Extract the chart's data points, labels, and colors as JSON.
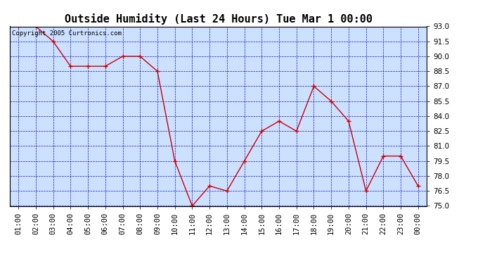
{
  "title": "Outside Humidity (Last 24 Hours) Tue Mar 1 00:00",
  "copyright": "Copyright 2005 Curtronics.com",
  "x_labels": [
    "01:00",
    "02:00",
    "03:00",
    "04:00",
    "05:00",
    "06:00",
    "07:00",
    "08:00",
    "09:00",
    "10:00",
    "11:00",
    "12:00",
    "13:00",
    "14:00",
    "15:00",
    "16:00",
    "17:00",
    "18:00",
    "19:00",
    "20:00",
    "21:00",
    "22:00",
    "23:00",
    "00:00"
  ],
  "y_values": [
    93.0,
    93.0,
    91.5,
    89.0,
    89.0,
    89.0,
    90.0,
    90.0,
    88.5,
    79.5,
    75.0,
    77.0,
    76.5,
    79.5,
    82.5,
    83.5,
    82.5,
    87.0,
    85.5,
    83.5,
    76.5,
    80.0,
    80.0,
    77.0
  ],
  "line_color": "#cc0000",
  "marker_color": "#cc0000",
  "fig_bg_color": "#ffffff",
  "plot_bg_color": "#cce0ff",
  "grid_color": "#0000bb",
  "border_color": "#000000",
  "title_color": "#000000",
  "ylim": [
    75.0,
    93.0
  ],
  "yticks": [
    75.0,
    76.5,
    78.0,
    79.5,
    81.0,
    82.5,
    84.0,
    85.5,
    87.0,
    88.5,
    90.0,
    91.5,
    93.0
  ],
  "title_fontsize": 11,
  "copyright_fontsize": 6.5,
  "tick_fontsize": 7.5
}
